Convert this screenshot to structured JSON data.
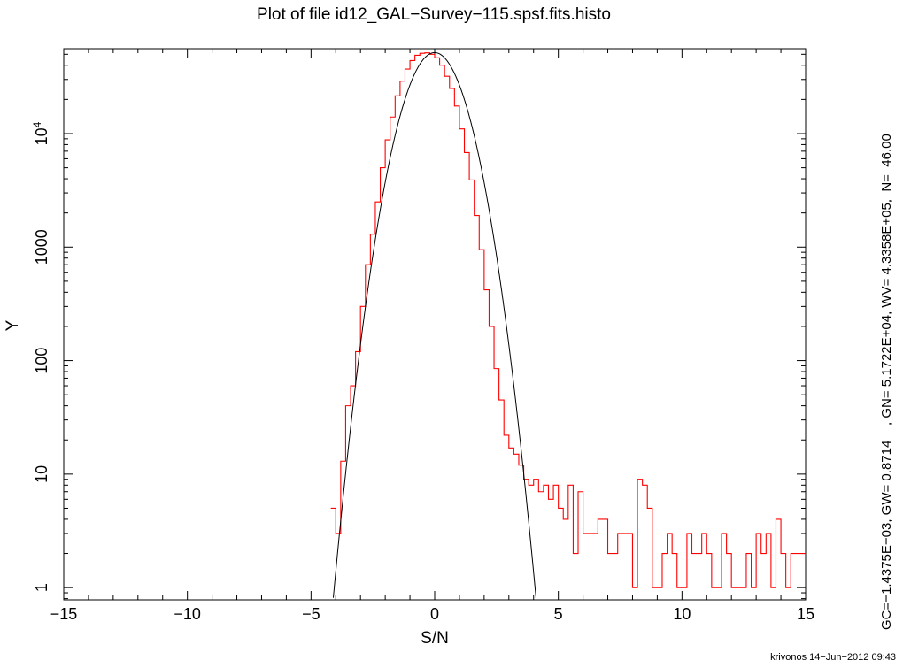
{
  "page": {
    "title": "Plot of file id12_GAL−Survey−115.spsf.fits.histo",
    "fit_annotation": "GC=−1.4375E−03, GW= 0.8714    , GN= 5.1722E+04, WV= 4.3358E+05,  N=  46.00",
    "footer": "krivonos 14−Jun−2012 09:43"
  },
  "chart_data": {
    "type": "line",
    "title": "Plot of file id12_GAL−Survey−115.spsf.fits.histo",
    "xlabel": "S/N",
    "ylabel": "Y",
    "xlim": [
      -15,
      15
    ],
    "ylim": [
      0.78,
      56000
    ],
    "yscale": "log",
    "x_ticks": [
      {
        "value": -15,
        "label": "−15"
      },
      {
        "value": -10,
        "label": "−10"
      },
      {
        "value": -5,
        "label": "−5"
      },
      {
        "value": 0,
        "label": "0"
      },
      {
        "value": 5,
        "label": "5"
      },
      {
        "value": 10,
        "label": "10"
      },
      {
        "value": 15,
        "label": "15"
      }
    ],
    "y_ticks": [
      {
        "value": 1,
        "label": "1"
      },
      {
        "value": 10,
        "label": "10"
      },
      {
        "value": 100,
        "label": "100"
      },
      {
        "value": 1000,
        "label": "1000"
      },
      {
        "value": 10000,
        "label": "10",
        "exponent": "4"
      }
    ],
    "grid": false,
    "legend": "none",
    "series": [
      {
        "type": "step",
        "color": "#ff0000",
        "bin_width": 0.2,
        "x": [
          -4.1,
          -3.9,
          -3.7,
          -3.5,
          -3.3,
          -3.1,
          -2.9,
          -2.7,
          -2.5,
          -2.3,
          -2.1,
          -1.9,
          -1.7,
          -1.5,
          -1.3,
          -1.1,
          -0.9,
          -0.7,
          -0.5,
          -0.3,
          -0.1,
          0.1,
          0.3,
          0.5,
          0.7,
          0.9,
          1.1,
          1.3,
          1.5,
          1.7,
          1.9,
          2.1,
          2.3,
          2.5,
          2.7,
          2.9,
          3.1,
          3.3,
          3.5,
          3.7,
          3.9,
          4.1,
          4.3,
          4.5,
          4.7,
          4.9,
          5.1,
          5.3,
          5.5,
          5.7,
          5.9,
          6.1,
          6.3,
          6.5,
          6.7,
          6.9,
          7.1,
          7.3,
          7.5,
          7.7,
          7.9,
          8.1,
          8.3,
          8.5,
          8.7,
          8.9,
          9.1,
          9.3,
          9.5,
          9.7,
          9.9,
          10.1,
          10.3,
          10.5,
          10.7,
          10.9,
          11.1,
          11.3,
          11.5,
          11.7,
          11.9,
          12.1,
          12.3,
          12.5,
          12.7,
          12.9,
          13.1,
          13.3,
          13.5,
          13.7,
          13.9,
          14.1,
          14.3,
          14.5,
          14.7,
          14.9
        ],
        "y": [
          5,
          3,
          13,
          40,
          60,
          120,
          300,
          700,
          1300,
          2500,
          5000,
          8800,
          14000,
          21500,
          29000,
          37000,
          44000,
          49000,
          51000,
          51500,
          50000,
          46500,
          40000,
          32000,
          25000,
          17500,
          11000,
          6800,
          3900,
          1900,
          950,
          420,
          200,
          85,
          45,
          22,
          17,
          15,
          12,
          9,
          8,
          9,
          7,
          8,
          6,
          8,
          5,
          4,
          8,
          2,
          7,
          3,
          3,
          3,
          4,
          4,
          2,
          2,
          3,
          3,
          3,
          1,
          9,
          8,
          5,
          1,
          1,
          2,
          3,
          2,
          1,
          1,
          3,
          2,
          2,
          3,
          2,
          1,
          1,
          3,
          2,
          1,
          1,
          1,
          2,
          1,
          3,
          2,
          3,
          1,
          4,
          2,
          1,
          2,
          2,
          2
        ]
      },
      {
        "type": "gaussian_fit",
        "color": "#000000",
        "x_range": [
          -4.1,
          4.1
        ],
        "center": -0.0014375,
        "sigma": 0.8714,
        "amplitude": 51722
      }
    ]
  }
}
